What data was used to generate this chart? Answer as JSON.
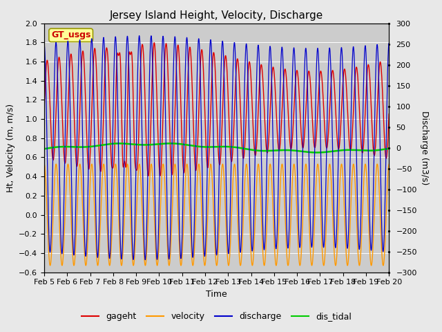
{
  "title": "Jersey Island Height, Velocity, Discharge",
  "xlabel": "Time",
  "ylabel_left": "Ht, Velocity (m, m/s)",
  "ylabel_right": "Discharge (m3/s)",
  "ylim_left": [
    -0.6,
    2.0
  ],
  "ylim_right": [
    -300,
    300
  ],
  "xtick_labels": [
    "Feb 5",
    "Feb 6",
    "Feb 7",
    "Feb 8",
    "Feb 9",
    "Feb 10",
    "Feb 11",
    "Feb 12",
    "Feb 13",
    "Feb 14",
    "Feb 15",
    "Feb 16",
    "Feb 17",
    "Feb 18",
    "Feb 19",
    "Feb 20"
  ],
  "bg_color": "#e8e8e8",
  "plot_bg_color": "#d8d8d8",
  "gt_usgs_text": "GT_usgs",
  "gt_usgs_color": "#cc0000",
  "gt_usgs_bg": "#ffff99",
  "color_gageht": "#dd0000",
  "color_velocity": "#ff9900",
  "color_discharge": "#0000cc",
  "color_distidal": "#00cc00",
  "title_fontsize": 11,
  "axis_fontsize": 9,
  "tick_fontsize": 8
}
